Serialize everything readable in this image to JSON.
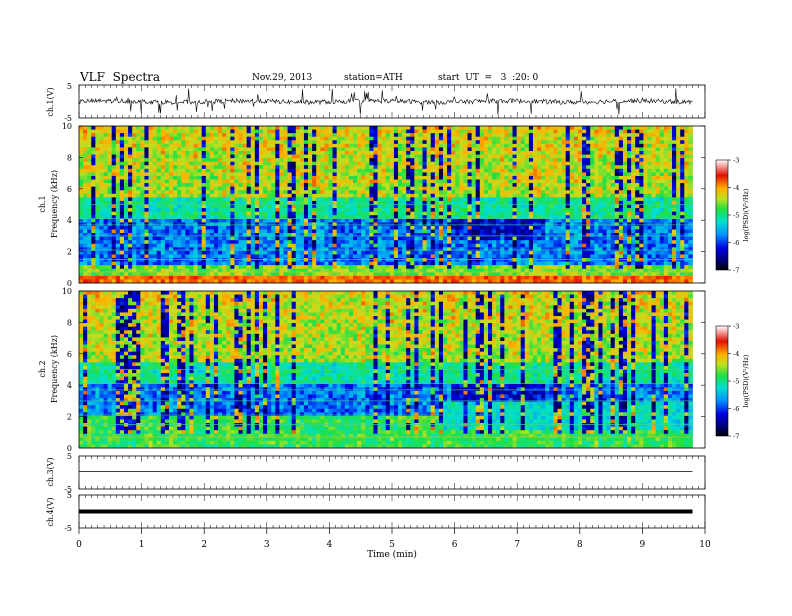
{
  "header": {
    "title": "VLF  Spectra",
    "date": "Nov.29, 2013",
    "station": "station=ATH",
    "start": "start  UT  =   3  :20: 0"
  },
  "chart_data": [
    {
      "type": "line",
      "panel": "ch1_waveform",
      "ylabel": "ch.1(V)",
      "ytick_labels": [
        "5",
        "-5"
      ],
      "ylim": [
        -5,
        5
      ],
      "description_values": "noisy waveform centered near 0 V with frequent impulsive spikes"
    },
    {
      "type": "heatmap",
      "panel": "ch1_spectrogram",
      "ylabel": "ch.1\nFrequency  (kHz)",
      "ylabel_lines": [
        "ch.1",
        "Frequency  (kHz)"
      ],
      "ylim": [
        0,
        10
      ],
      "yticks": [
        0,
        2,
        4,
        6,
        8,
        10
      ],
      "colorbar": {
        "label": "log(PSD)(V²/Hz)",
        "range": [
          -7,
          -3
        ],
        "ticks": [
          "-3",
          "-4",
          "-5",
          "-6",
          "-7"
        ]
      }
    },
    {
      "type": "heatmap",
      "panel": "ch2_spectrogram",
      "ylabel_lines": [
        "ch.2",
        "Frequency  (kHz)"
      ],
      "ylim": [
        0,
        10
      ],
      "yticks": [
        0,
        2,
        4,
        6,
        8,
        10
      ],
      "colorbar": {
        "label": "log(PSD)(V²/Hz)",
        "range": [
          -7,
          -3
        ],
        "ticks": [
          "-3",
          "-4",
          "-5",
          "-6",
          "-7"
        ]
      }
    },
    {
      "type": "line",
      "panel": "ch3_waveform",
      "ylabel": "ch.3(V)",
      "ytick_labels": [
        "5",
        "-5"
      ],
      "ylim": [
        -5,
        5
      ],
      "constant_value": 0.3
    },
    {
      "type": "line",
      "panel": "ch4_waveform",
      "ylabel": "ch.4(V)",
      "ytick_labels": [
        "5",
        "-5"
      ],
      "ylim": [
        -5,
        5
      ],
      "constant_value": 0
    }
  ],
  "xaxis": {
    "label": "Time  (min)",
    "xlim": [
      0,
      10
    ],
    "ticks": [
      "0",
      "1",
      "2",
      "3",
      "4",
      "5",
      "6",
      "7",
      "8",
      "9",
      "10"
    ],
    "data_end": 9.8
  },
  "colors": {
    "spectrogram_scale": [
      "#000000",
      "#0000c8",
      "#0090ff",
      "#00e0c0",
      "#20e040",
      "#c8e020",
      "#ffa000",
      "#e00000",
      "#ffffff"
    ]
  }
}
